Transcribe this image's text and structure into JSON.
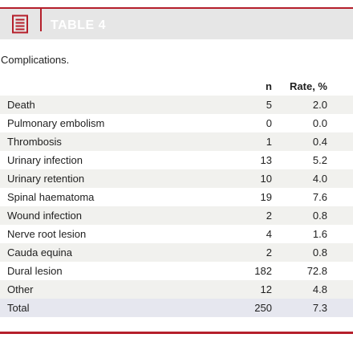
{
  "header": {
    "label": "TABLE 4",
    "icon": "document-icon"
  },
  "caption": "Complications.",
  "columns": {
    "name": "",
    "n": "n",
    "rate": "Rate, %"
  },
  "rows": [
    {
      "name": "Death",
      "n": "5",
      "rate": "2.0"
    },
    {
      "name": "Pulmonary embolism",
      "n": "0",
      "rate": "0.0"
    },
    {
      "name": "Thrombosis",
      "n": "1",
      "rate": "0.4"
    },
    {
      "name": "Urinary infection",
      "n": "13",
      "rate": "5.2"
    },
    {
      "name": "Urinary retention",
      "n": "10",
      "rate": "4.0"
    },
    {
      "name": "Spinal haematoma",
      "n": "19",
      "rate": "7.6"
    },
    {
      "name": "Wound infection",
      "n": "2",
      "rate": "0.8"
    },
    {
      "name": "Nerve root lesion",
      "n": "4",
      "rate": "1.6"
    },
    {
      "name": "Cauda equina",
      "n": "2",
      "rate": "0.8"
    },
    {
      "name": "Dural lesion",
      "n": "182",
      "rate": "72.8"
    },
    {
      "name": "Other",
      "n": "12",
      "rate": "4.8"
    }
  ],
  "total": {
    "name": "Total",
    "n": "250",
    "rate": "7.3"
  },
  "colors": {
    "accent": "#b51f2b",
    "header_bg": "#e6e6e6",
    "alt_row": "#f1f1ee",
    "total_row": "#e6e7ef"
  }
}
